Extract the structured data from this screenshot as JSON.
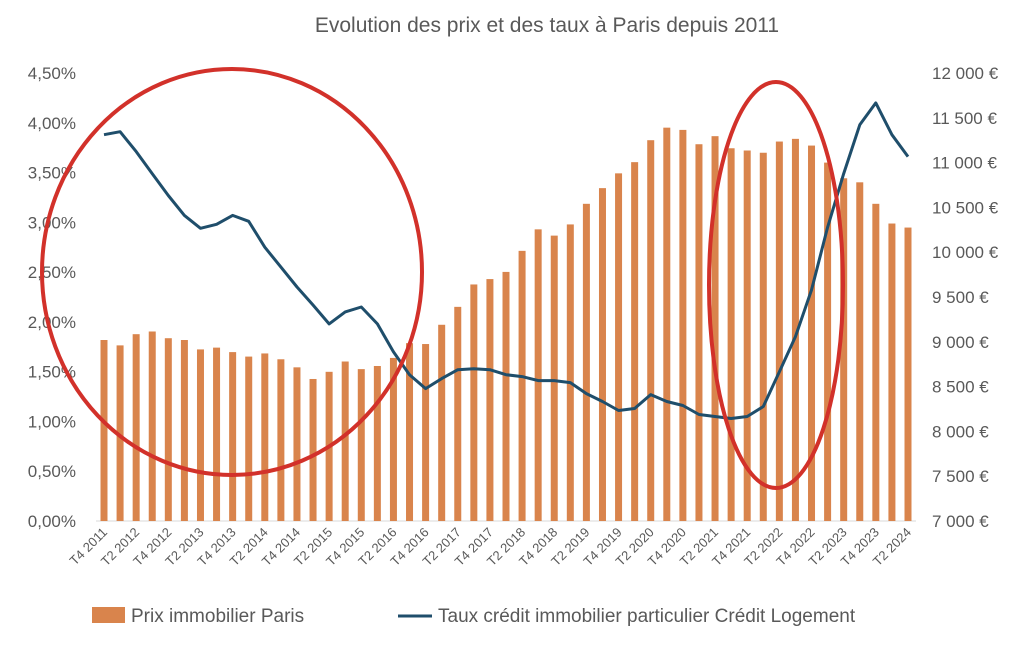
{
  "chart_data": {
    "type": "bar+line",
    "title": "Evolution des prix et des taux à Paris depuis 2011",
    "x_tick_labels": [
      "T4 2011",
      "T2 2012",
      "T4 2012",
      "T2 2013",
      "T4 2013",
      "T2 2014",
      "T4 2014",
      "T2 2015",
      "T4 2015",
      "T2 2016",
      "T4 2016",
      "T2 2017",
      "T4 2017",
      "T2 2018",
      "T4 2018",
      "T2 2019",
      "T4 2019",
      "T2 2020",
      "T4 2020",
      "T2 2021",
      "T4 2021",
      "T2 2022",
      "T4 2022",
      "T2 2023",
      "T4 2023",
      "T2 2024"
    ],
    "y_left": {
      "ylim": [
        0,
        4.5
      ],
      "ticks": [
        "0,00%",
        "0,50%",
        "1,00%",
        "1,50%",
        "2,00%",
        "2,50%",
        "3,00%",
        "3,50%",
        "4,00%",
        "4,50%"
      ]
    },
    "y_right": {
      "ylim": [
        7000,
        12000
      ],
      "ticks": [
        "7 000 €",
        "7 500 €",
        "8 000 €",
        "8 500 €",
        "9 000 €",
        "9 500 €",
        "10 000 €",
        "10 500 €",
        "11 000 €",
        "11 500 €",
        "12 000 €"
      ]
    },
    "grid": false,
    "legend_position": "bottom",
    "series": [
      {
        "name": "Prix immobilier Paris",
        "type": "bar",
        "axis": "right",
        "color": "#D9844C",
        "values": [
          9020,
          8960,
          9085,
          9115,
          9040,
          9020,
          8915,
          8935,
          8885,
          8835,
          8870,
          8805,
          8715,
          8585,
          8665,
          8780,
          8695,
          8730,
          8820,
          8985,
          8975,
          9190,
          9390,
          9640,
          9700,
          9780,
          10015,
          10255,
          10185,
          10310,
          10540,
          10715,
          10880,
          11005,
          11250,
          11390,
          11365,
          11205,
          11295,
          11160,
          11135,
          11110,
          11235,
          11265,
          11190,
          11000,
          10825,
          10780,
          10540,
          10320,
          10275
        ]
      },
      {
        "name": "Taux crédit immobilier particulier Crédit Logement",
        "type": "line",
        "axis": "left",
        "color": "#1F4E6B",
        "values": [
          3.88,
          3.91,
          3.71,
          3.49,
          3.27,
          3.07,
          2.94,
          2.98,
          3.07,
          3.01,
          2.75,
          2.55,
          2.35,
          2.17,
          1.98,
          2.1,
          2.15,
          1.98,
          1.7,
          1.47,
          1.33,
          1.43,
          1.52,
          1.53,
          1.52,
          1.47,
          1.45,
          1.41,
          1.41,
          1.39,
          1.28,
          1.2,
          1.11,
          1.13,
          1.27,
          1.2,
          1.16,
          1.07,
          1.05,
          1.03,
          1.05,
          1.15,
          1.5,
          1.85,
          2.32,
          2.95,
          3.49,
          3.98,
          4.2,
          3.88,
          3.66
        ]
      }
    ],
    "annotations": [
      {
        "type": "ellipse",
        "color": "#D2312A",
        "around": "T4 2011 – T2 2016"
      },
      {
        "type": "ellipse",
        "color": "#D2312A",
        "around": "T4 2021 – T4 2022"
      }
    ]
  }
}
